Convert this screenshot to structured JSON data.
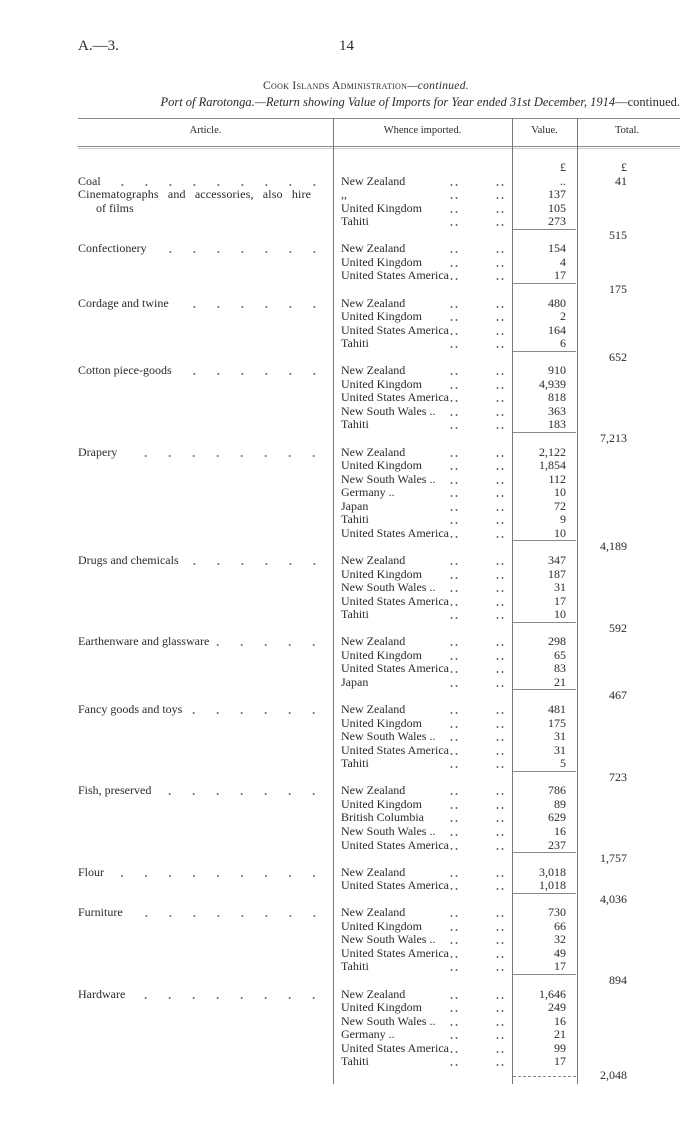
{
  "page_ref": "A.—3.",
  "page_number": "14",
  "title": {
    "main": "Cook Islands Administration",
    "suffix": "—continued."
  },
  "subtitle": {
    "italic": "Port of Rarotonga.—Return showing Value of Imports for Year ended 31st December, 1914",
    "plain": "—continued."
  },
  "columns": {
    "article": "Article.",
    "whence": "Whence imported.",
    "value": "Value.",
    "total": "Total."
  },
  "currency": {
    "value": "£",
    "total": "£"
  },
  "groups": [
    {
      "article": [
        "Coal"
      ],
      "entries": [
        {
          "whence": "New Zealand",
          "value": ".."
        }
      ],
      "total": "41",
      "total_inline": true
    },
    {
      "article": [
        "Cinematographs and accessories, also hire",
        "of films"
      ],
      "entries": [
        {
          "whence": ",,",
          "value": "137"
        },
        {
          "whence": "United Kingdom",
          "value": "105"
        },
        {
          "whence": "Tahiti",
          "value": "273"
        }
      ],
      "total": "515"
    },
    {
      "article": [
        "Confectionery"
      ],
      "entries": [
        {
          "whence": "New Zealand",
          "value": "154"
        },
        {
          "whence": "United Kingdom",
          "value": "4"
        },
        {
          "whence": "United States America",
          "value": "17"
        }
      ],
      "total": "175"
    },
    {
      "article": [
        "Cordage and twine"
      ],
      "entries": [
        {
          "whence": "New Zealand",
          "value": "480"
        },
        {
          "whence": "United Kingdom",
          "value": "2"
        },
        {
          "whence": "United States America",
          "value": "164"
        },
        {
          "whence": "Tahiti",
          "value": "6"
        }
      ],
      "total": "652"
    },
    {
      "article": [
        "Cotton piece-goods"
      ],
      "entries": [
        {
          "whence": "New Zealand",
          "value": "910"
        },
        {
          "whence": "United Kingdom",
          "value": "4,939"
        },
        {
          "whence": "United States America",
          "value": "818"
        },
        {
          "whence": "New South Wales ..",
          "value": "363"
        },
        {
          "whence": "Tahiti",
          "value": "183"
        }
      ],
      "total": "7,213"
    },
    {
      "article": [
        "Drapery"
      ],
      "entries": [
        {
          "whence": "New Zealand",
          "value": "2,122"
        },
        {
          "whence": "United Kingdom",
          "value": "1,854"
        },
        {
          "whence": "New South Wales ..",
          "value": "112"
        },
        {
          "whence": "Germany ..",
          "value": "10"
        },
        {
          "whence": "Japan",
          "value": "72"
        },
        {
          "whence": "Tahiti",
          "value": "9"
        },
        {
          "whence": "United States America",
          "value": "10"
        }
      ],
      "total": "4,189"
    },
    {
      "article": [
        "Drugs and chemicals"
      ],
      "entries": [
        {
          "whence": "New Zealand",
          "value": "347"
        },
        {
          "whence": "United Kingdom",
          "value": "187"
        },
        {
          "whence": "New South Wales ..",
          "value": "31"
        },
        {
          "whence": "United States America",
          "value": "17"
        },
        {
          "whence": "Tahiti",
          "value": "10"
        }
      ],
      "total": "592"
    },
    {
      "article": [
        "Earthenware and glassware"
      ],
      "entries": [
        {
          "whence": "New Zealand",
          "value": "298"
        },
        {
          "whence": "United Kingdom",
          "value": "65"
        },
        {
          "whence": "United States America",
          "value": "83"
        },
        {
          "whence": "Japan",
          "value": "21"
        }
      ],
      "total": "467"
    },
    {
      "article": [
        "Fancy goods and toys"
      ],
      "entries": [
        {
          "whence": "New Zealand",
          "value": "481"
        },
        {
          "whence": "United Kingdom",
          "value": "175"
        },
        {
          "whence": "New South Wales ..",
          "value": "31"
        },
        {
          "whence": "United States America",
          "value": "31"
        },
        {
          "whence": "Tahiti",
          "value": "5"
        }
      ],
      "total": "723"
    },
    {
      "article": [
        "Fish, preserved"
      ],
      "entries": [
        {
          "whence": "New Zealand",
          "value": "786"
        },
        {
          "whence": "United Kingdom",
          "value": "89"
        },
        {
          "whence": "British Columbia",
          "value": "629"
        },
        {
          "whence": "New South Wales ..",
          "value": "16"
        },
        {
          "whence": "United States America",
          "value": "237"
        }
      ],
      "total": "1,757"
    },
    {
      "article": [
        "Flour"
      ],
      "entries": [
        {
          "whence": "New Zealand",
          "value": "3,018"
        },
        {
          "whence": "United States America",
          "value": "1,018"
        }
      ],
      "total": "4,036"
    },
    {
      "article": [
        "Furniture"
      ],
      "entries": [
        {
          "whence": "New Zealand",
          "value": "730"
        },
        {
          "whence": "United Kingdom",
          "value": "66"
        },
        {
          "whence": "New South Wales ..",
          "value": "32"
        },
        {
          "whence": "United States America",
          "value": "49"
        },
        {
          "whence": "Tahiti",
          "value": "17"
        }
      ],
      "total": "894"
    },
    {
      "article": [
        "Hardware"
      ],
      "entries": [
        {
          "whence": "New Zealand",
          "value": "1,646"
        },
        {
          "whence": "United Kingdom",
          "value": "249"
        },
        {
          "whence": "New South Wales ..",
          "value": "16"
        },
        {
          "whence": "Germany ..",
          "value": "21"
        },
        {
          "whence": "United States America",
          "value": "99"
        },
        {
          "whence": "Tahiti",
          "value": "17"
        }
      ],
      "total": "2,048"
    }
  ]
}
